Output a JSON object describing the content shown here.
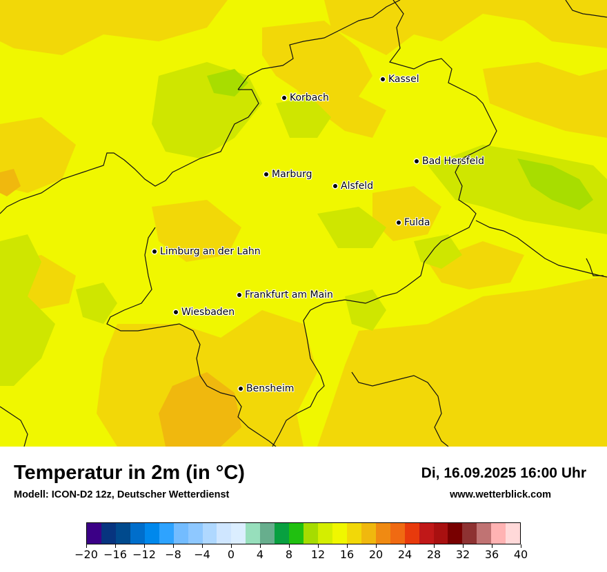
{
  "map": {
    "cities": [
      {
        "name": "Kassel",
        "key": "kassel"
      },
      {
        "name": "Korbach",
        "key": "korbach"
      },
      {
        "name": "Bad Hersfeld",
        "key": "bad-hersfeld"
      },
      {
        "name": "Marburg",
        "key": "marburg"
      },
      {
        "name": "Alsfeld",
        "key": "alsfeld"
      },
      {
        "name": "Fulda",
        "key": "fulda"
      },
      {
        "name": "Limburg an der Lahn",
        "key": "limburg"
      },
      {
        "name": "Frankfurt am Main",
        "key": "frankfurt"
      },
      {
        "name": "Wiesbaden",
        "key": "wiesbaden"
      },
      {
        "name": "Bensheim",
        "key": "bensheim"
      }
    ],
    "field_colors": {
      "base": "#f0f700",
      "warm": "#f2d808",
      "warmer": "#f0b80e",
      "cool": "#cfe600",
      "cooler": "#a8dd00"
    }
  },
  "header": {
    "title": "Temperatur in 2m (in °C)",
    "model": "Modell: ICON-D2 12z, Deutscher Wetterdienst",
    "datetime": "Di, 16.09.2025 16:00 Uhr",
    "website": "www.wetterblick.com"
  },
  "legend": {
    "colors": [
      "#3b0086",
      "#07347f",
      "#004a8d",
      "#006ecb",
      "#0088ec",
      "#2ea3ff",
      "#73bcff",
      "#8ec8ff",
      "#afd8ff",
      "#cfe6ff",
      "#dbeeff",
      "#97dfbc",
      "#67ae8d",
      "#08a040",
      "#20c010",
      "#a6dc00",
      "#d4ee00",
      "#f0f700",
      "#f2d808",
      "#f0b80e",
      "#f08a12",
      "#f06a12",
      "#e83a0c",
      "#c01818",
      "#a81010",
      "#780000",
      "#8e3232",
      "#c07373",
      "#ffb3b3",
      "#ffd9d9"
    ],
    "tick_labels": [
      "−20",
      "−16",
      "−12",
      "−8",
      "−4",
      "0",
      "4",
      "8",
      "12",
      "16",
      "20",
      "24",
      "28",
      "32",
      "36",
      "40"
    ]
  }
}
